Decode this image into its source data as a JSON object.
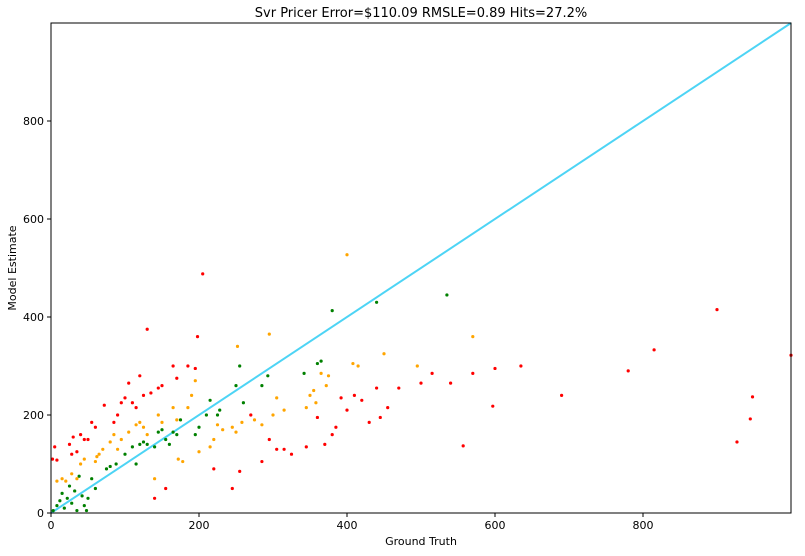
{
  "chart_data": {
    "type": "scatter",
    "title": "Svr Pricer Error=$110.09 RMSLE=0.89 Hits=27.2%",
    "xlabel": "Ground Truth",
    "ylabel": "Model Estimate",
    "xlim": [
      0,
      1000
    ],
    "ylim": [
      0,
      1000
    ],
    "xticks": [
      "0",
      "200",
      "400",
      "600",
      "800"
    ],
    "yticks": [
      "0",
      "200",
      "400",
      "600",
      "800"
    ],
    "xtick_values": [
      0,
      200,
      400,
      600,
      800
    ],
    "ytick_values": [
      0,
      200,
      400,
      600,
      800
    ],
    "grid": false,
    "reference_line": {
      "from": [
        0,
        0
      ],
      "to": [
        1000,
        1000
      ],
      "color": "#4dd4f5"
    },
    "colors": {
      "green": "#008000",
      "orange": "#ffa500",
      "red": "#ff0000"
    },
    "points": [
      {
        "x": 3,
        "y": 5,
        "c": "green"
      },
      {
        "x": 8,
        "y": 15,
        "c": "green"
      },
      {
        "x": 12,
        "y": 25,
        "c": "green"
      },
      {
        "x": 15,
        "y": 40,
        "c": "green"
      },
      {
        "x": 18,
        "y": 10,
        "c": "green"
      },
      {
        "x": 22,
        "y": 30,
        "c": "green"
      },
      {
        "x": 25,
        "y": 55,
        "c": "green"
      },
      {
        "x": 28,
        "y": 20,
        "c": "green"
      },
      {
        "x": 32,
        "y": 45,
        "c": "green"
      },
      {
        "x": 35,
        "y": 5,
        "c": "green"
      },
      {
        "x": 38,
        "y": 75,
        "c": "green"
      },
      {
        "x": 42,
        "y": 35,
        "c": "green"
      },
      {
        "x": 45,
        "y": 15,
        "c": "green"
      },
      {
        "x": 48,
        "y": 5,
        "c": "green"
      },
      {
        "x": 50,
        "y": 30,
        "c": "green"
      },
      {
        "x": 55,
        "y": 70,
        "c": "green"
      },
      {
        "x": 60,
        "y": 50,
        "c": "green"
      },
      {
        "x": 75,
        "y": 90,
        "c": "green"
      },
      {
        "x": 80,
        "y": 95,
        "c": "green"
      },
      {
        "x": 88,
        "y": 100,
        "c": "green"
      },
      {
        "x": 100,
        "y": 120,
        "c": "green"
      },
      {
        "x": 110,
        "y": 135,
        "c": "green"
      },
      {
        "x": 115,
        "y": 100,
        "c": "green"
      },
      {
        "x": 120,
        "y": 140,
        "c": "green"
      },
      {
        "x": 125,
        "y": 145,
        "c": "green"
      },
      {
        "x": 130,
        "y": 140,
        "c": "green"
      },
      {
        "x": 140,
        "y": 135,
        "c": "green"
      },
      {
        "x": 145,
        "y": 165,
        "c": "green"
      },
      {
        "x": 150,
        "y": 170,
        "c": "green"
      },
      {
        "x": 155,
        "y": 150,
        "c": "green"
      },
      {
        "x": 160,
        "y": 140,
        "c": "green"
      },
      {
        "x": 165,
        "y": 165,
        "c": "green"
      },
      {
        "x": 170,
        "y": 160,
        "c": "green"
      },
      {
        "x": 175,
        "y": 190,
        "c": "green"
      },
      {
        "x": 195,
        "y": 160,
        "c": "green"
      },
      {
        "x": 200,
        "y": 175,
        "c": "green"
      },
      {
        "x": 210,
        "y": 200,
        "c": "green"
      },
      {
        "x": 215,
        "y": 230,
        "c": "green"
      },
      {
        "x": 225,
        "y": 200,
        "c": "green"
      },
      {
        "x": 228,
        "y": 210,
        "c": "green"
      },
      {
        "x": 250,
        "y": 260,
        "c": "green"
      },
      {
        "x": 255,
        "y": 300,
        "c": "green"
      },
      {
        "x": 260,
        "y": 225,
        "c": "green"
      },
      {
        "x": 285,
        "y": 260,
        "c": "green"
      },
      {
        "x": 293,
        "y": 280,
        "c": "green"
      },
      {
        "x": 342,
        "y": 285,
        "c": "green"
      },
      {
        "x": 360,
        "y": 305,
        "c": "green"
      },
      {
        "x": 365,
        "y": 310,
        "c": "green"
      },
      {
        "x": 380,
        "y": 413,
        "c": "green"
      },
      {
        "x": 440,
        "y": 430,
        "c": "green"
      },
      {
        "x": 535,
        "y": 445,
        "c": "green"
      },
      {
        "x": 8,
        "y": 65,
        "c": "orange"
      },
      {
        "x": 15,
        "y": 70,
        "c": "orange"
      },
      {
        "x": 20,
        "y": 65,
        "c": "orange"
      },
      {
        "x": 28,
        "y": 80,
        "c": "orange"
      },
      {
        "x": 35,
        "y": 70,
        "c": "orange"
      },
      {
        "x": 40,
        "y": 100,
        "c": "orange"
      },
      {
        "x": 45,
        "y": 110,
        "c": "orange"
      },
      {
        "x": 60,
        "y": 105,
        "c": "orange"
      },
      {
        "x": 62,
        "y": 115,
        "c": "orange"
      },
      {
        "x": 65,
        "y": 120,
        "c": "orange"
      },
      {
        "x": 70,
        "y": 130,
        "c": "orange"
      },
      {
        "x": 80,
        "y": 145,
        "c": "orange"
      },
      {
        "x": 85,
        "y": 160,
        "c": "orange"
      },
      {
        "x": 90,
        "y": 130,
        "c": "orange"
      },
      {
        "x": 95,
        "y": 150,
        "c": "orange"
      },
      {
        "x": 105,
        "y": 165,
        "c": "orange"
      },
      {
        "x": 115,
        "y": 180,
        "c": "orange"
      },
      {
        "x": 120,
        "y": 185,
        "c": "orange"
      },
      {
        "x": 125,
        "y": 175,
        "c": "orange"
      },
      {
        "x": 130,
        "y": 160,
        "c": "orange"
      },
      {
        "x": 140,
        "y": 70,
        "c": "orange"
      },
      {
        "x": 145,
        "y": 200,
        "c": "orange"
      },
      {
        "x": 150,
        "y": 185,
        "c": "orange"
      },
      {
        "x": 165,
        "y": 215,
        "c": "orange"
      },
      {
        "x": 170,
        "y": 190,
        "c": "orange"
      },
      {
        "x": 172,
        "y": 110,
        "c": "orange"
      },
      {
        "x": 178,
        "y": 105,
        "c": "orange"
      },
      {
        "x": 185,
        "y": 215,
        "c": "orange"
      },
      {
        "x": 190,
        "y": 240,
        "c": "orange"
      },
      {
        "x": 195,
        "y": 270,
        "c": "orange"
      },
      {
        "x": 200,
        "y": 125,
        "c": "orange"
      },
      {
        "x": 215,
        "y": 135,
        "c": "orange"
      },
      {
        "x": 220,
        "y": 150,
        "c": "orange"
      },
      {
        "x": 225,
        "y": 180,
        "c": "orange"
      },
      {
        "x": 232,
        "y": 170,
        "c": "orange"
      },
      {
        "x": 245,
        "y": 175,
        "c": "orange"
      },
      {
        "x": 250,
        "y": 165,
        "c": "orange"
      },
      {
        "x": 252,
        "y": 340,
        "c": "orange"
      },
      {
        "x": 258,
        "y": 185,
        "c": "orange"
      },
      {
        "x": 275,
        "y": 190,
        "c": "orange"
      },
      {
        "x": 285,
        "y": 180,
        "c": "orange"
      },
      {
        "x": 295,
        "y": 365,
        "c": "orange"
      },
      {
        "x": 300,
        "y": 200,
        "c": "orange"
      },
      {
        "x": 305,
        "y": 235,
        "c": "orange"
      },
      {
        "x": 315,
        "y": 210,
        "c": "orange"
      },
      {
        "x": 345,
        "y": 215,
        "c": "orange"
      },
      {
        "x": 350,
        "y": 240,
        "c": "orange"
      },
      {
        "x": 355,
        "y": 250,
        "c": "orange"
      },
      {
        "x": 358,
        "y": 225,
        "c": "orange"
      },
      {
        "x": 365,
        "y": 285,
        "c": "orange"
      },
      {
        "x": 372,
        "y": 260,
        "c": "orange"
      },
      {
        "x": 375,
        "y": 280,
        "c": "orange"
      },
      {
        "x": 400,
        "y": 527,
        "c": "orange"
      },
      {
        "x": 408,
        "y": 305,
        "c": "orange"
      },
      {
        "x": 415,
        "y": 300,
        "c": "orange"
      },
      {
        "x": 450,
        "y": 325,
        "c": "orange"
      },
      {
        "x": 495,
        "y": 300,
        "c": "orange"
      },
      {
        "x": 570,
        "y": 360,
        "c": "orange"
      },
      {
        "x": 2,
        "y": 110,
        "c": "red"
      },
      {
        "x": 5,
        "y": 135,
        "c": "red"
      },
      {
        "x": 8,
        "y": 108,
        "c": "red"
      },
      {
        "x": 25,
        "y": 140,
        "c": "red"
      },
      {
        "x": 28,
        "y": 120,
        "c": "red"
      },
      {
        "x": 30,
        "y": 155,
        "c": "red"
      },
      {
        "x": 35,
        "y": 125,
        "c": "red"
      },
      {
        "x": 40,
        "y": 160,
        "c": "red"
      },
      {
        "x": 45,
        "y": 150,
        "c": "red"
      },
      {
        "x": 50,
        "y": 150,
        "c": "red"
      },
      {
        "x": 55,
        "y": 185,
        "c": "red"
      },
      {
        "x": 60,
        "y": 175,
        "c": "red"
      },
      {
        "x": 72,
        "y": 220,
        "c": "red"
      },
      {
        "x": 85,
        "y": 185,
        "c": "red"
      },
      {
        "x": 90,
        "y": 200,
        "c": "red"
      },
      {
        "x": 95,
        "y": 225,
        "c": "red"
      },
      {
        "x": 100,
        "y": 235,
        "c": "red"
      },
      {
        "x": 105,
        "y": 265,
        "c": "red"
      },
      {
        "x": 110,
        "y": 225,
        "c": "red"
      },
      {
        "x": 115,
        "y": 215,
        "c": "red"
      },
      {
        "x": 120,
        "y": 280,
        "c": "red"
      },
      {
        "x": 125,
        "y": 240,
        "c": "red"
      },
      {
        "x": 130,
        "y": 375,
        "c": "red"
      },
      {
        "x": 135,
        "y": 245,
        "c": "red"
      },
      {
        "x": 140,
        "y": 30,
        "c": "red"
      },
      {
        "x": 145,
        "y": 255,
        "c": "red"
      },
      {
        "x": 150,
        "y": 260,
        "c": "red"
      },
      {
        "x": 155,
        "y": 50,
        "c": "red"
      },
      {
        "x": 165,
        "y": 300,
        "c": "red"
      },
      {
        "x": 170,
        "y": 275,
        "c": "red"
      },
      {
        "x": 185,
        "y": 300,
        "c": "red"
      },
      {
        "x": 195,
        "y": 295,
        "c": "red"
      },
      {
        "x": 198,
        "y": 360,
        "c": "red"
      },
      {
        "x": 205,
        "y": 488,
        "c": "red"
      },
      {
        "x": 220,
        "y": 90,
        "c": "red"
      },
      {
        "x": 245,
        "y": 50,
        "c": "red"
      },
      {
        "x": 255,
        "y": 85,
        "c": "red"
      },
      {
        "x": 270,
        "y": 200,
        "c": "red"
      },
      {
        "x": 285,
        "y": 105,
        "c": "red"
      },
      {
        "x": 295,
        "y": 150,
        "c": "red"
      },
      {
        "x": 305,
        "y": 130,
        "c": "red"
      },
      {
        "x": 315,
        "y": 130,
        "c": "red"
      },
      {
        "x": 325,
        "y": 120,
        "c": "red"
      },
      {
        "x": 345,
        "y": 135,
        "c": "red"
      },
      {
        "x": 360,
        "y": 195,
        "c": "red"
      },
      {
        "x": 370,
        "y": 140,
        "c": "red"
      },
      {
        "x": 380,
        "y": 160,
        "c": "red"
      },
      {
        "x": 385,
        "y": 175,
        "c": "red"
      },
      {
        "x": 392,
        "y": 235,
        "c": "red"
      },
      {
        "x": 400,
        "y": 210,
        "c": "red"
      },
      {
        "x": 410,
        "y": 240,
        "c": "red"
      },
      {
        "x": 420,
        "y": 230,
        "c": "red"
      },
      {
        "x": 430,
        "y": 185,
        "c": "red"
      },
      {
        "x": 440,
        "y": 255,
        "c": "red"
      },
      {
        "x": 445,
        "y": 195,
        "c": "red"
      },
      {
        "x": 455,
        "y": 215,
        "c": "red"
      },
      {
        "x": 470,
        "y": 255,
        "c": "red"
      },
      {
        "x": 500,
        "y": 265,
        "c": "red"
      },
      {
        "x": 515,
        "y": 285,
        "c": "red"
      },
      {
        "x": 540,
        "y": 265,
        "c": "red"
      },
      {
        "x": 557,
        "y": 137,
        "c": "red"
      },
      {
        "x": 570,
        "y": 285,
        "c": "red"
      },
      {
        "x": 597,
        "y": 218,
        "c": "red"
      },
      {
        "x": 600,
        "y": 295,
        "c": "red"
      },
      {
        "x": 635,
        "y": 300,
        "c": "red"
      },
      {
        "x": 690,
        "y": 240,
        "c": "red"
      },
      {
        "x": 780,
        "y": 290,
        "c": "red"
      },
      {
        "x": 815,
        "y": 333,
        "c": "red"
      },
      {
        "x": 900,
        "y": 415,
        "c": "red"
      },
      {
        "x": 927,
        "y": 145,
        "c": "red"
      },
      {
        "x": 945,
        "y": 192,
        "c": "red"
      },
      {
        "x": 948,
        "y": 237,
        "c": "red"
      },
      {
        "x": 1000,
        "y": 322,
        "c": "red"
      }
    ]
  }
}
